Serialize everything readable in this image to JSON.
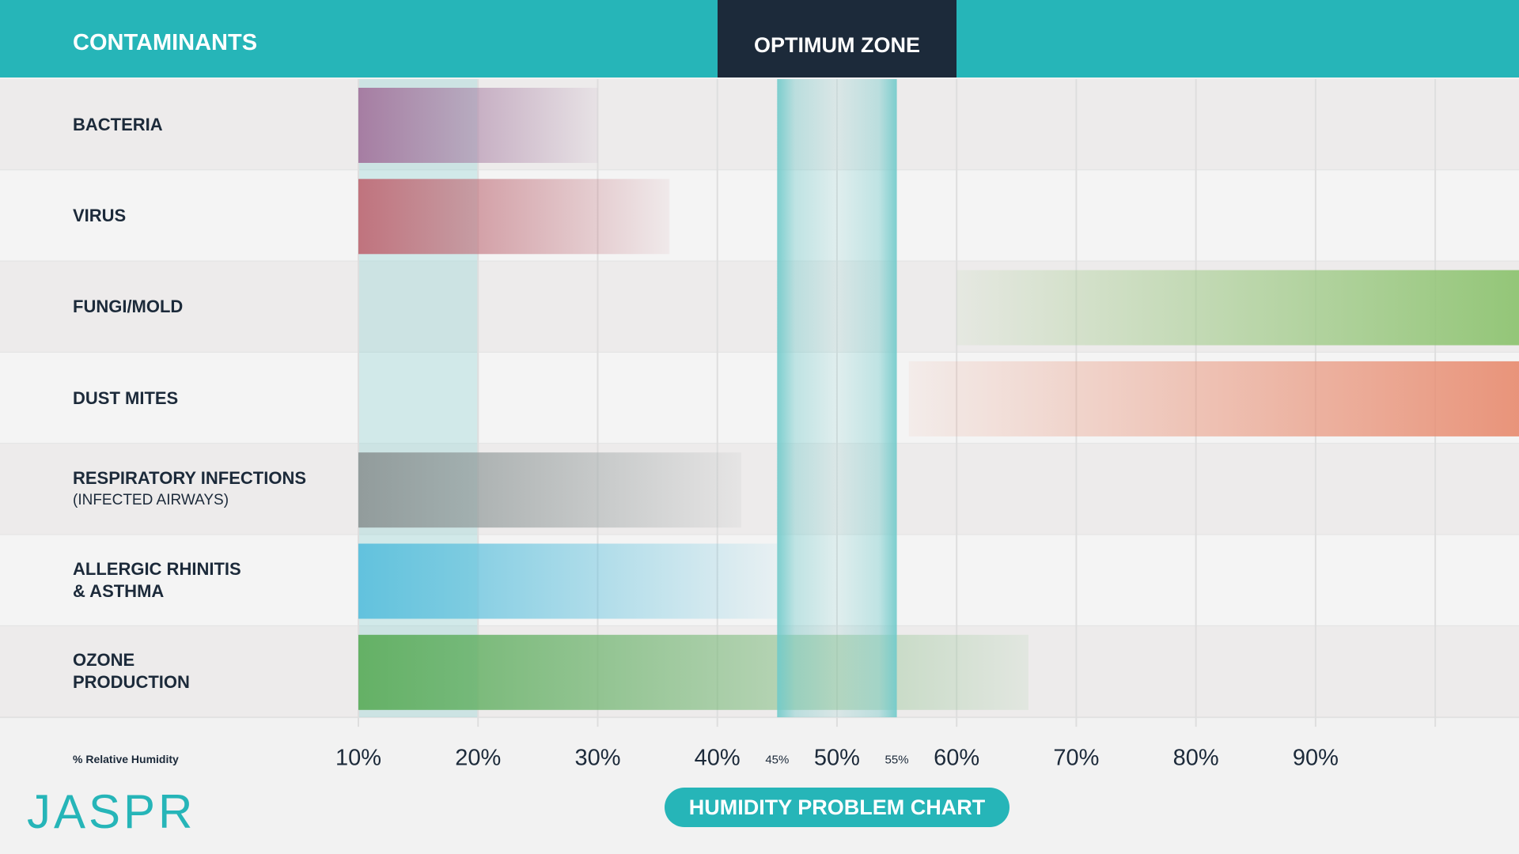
{
  "chart_data": {
    "type": "range_bar",
    "title": "HUMIDITY PROBLEM CHART",
    "header_label": "CONTAMINANTS",
    "zone_label": "OPTIMUM ZONE",
    "x_label": "% Relative Humidity",
    "brand": "JASPR",
    "categories": [
      "BACTERIA",
      "VIRUS",
      "FUNGI/MOLD",
      "DUST MITES",
      "RESPIRATORY INFECTIONS",
      "ALLERGIC RHINITIS\n& ASTHMA",
      "OZONE\nPRODUCTION"
    ],
    "category_notes": [
      null,
      null,
      null,
      null,
      "(INFECTED AIRWAYS)",
      null,
      null
    ],
    "ranges": [
      [
        10,
        30
      ],
      [
        10,
        36
      ],
      [
        60,
        107
      ],
      [
        56,
        107
      ],
      [
        10,
        42
      ],
      [
        10,
        45
      ],
      [
        10,
        66
      ]
    ],
    "colors": [
      "#a4789f",
      "#bf6d78",
      "#8fc472",
      "#e88f74",
      "#8f9898",
      "#5cc0dd",
      "#5fae5f"
    ],
    "xlim": [
      10,
      107
    ],
    "xticks": [
      {
        "value": 10,
        "label": "10%"
      },
      {
        "value": 20,
        "label": "20%"
      },
      {
        "value": 30,
        "label": "30%"
      },
      {
        "value": 40,
        "label": "40%"
      },
      {
        "value": 50,
        "label": "50%"
      },
      {
        "value": 60,
        "label": "60%"
      },
      {
        "value": 70,
        "label": "70%"
      },
      {
        "value": 80,
        "label": "80%"
      },
      {
        "value": 90,
        "label": "90%"
      },
      {
        "value": 100,
        "label": null
      }
    ],
    "minor_xticks": [
      {
        "value": 45,
        "label": "45%"
      },
      {
        "value": 55,
        "label": "55%"
      }
    ],
    "optimum_zone": [
      45,
      55
    ],
    "highlight_range": [
      10,
      20
    ],
    "grid": true
  }
}
